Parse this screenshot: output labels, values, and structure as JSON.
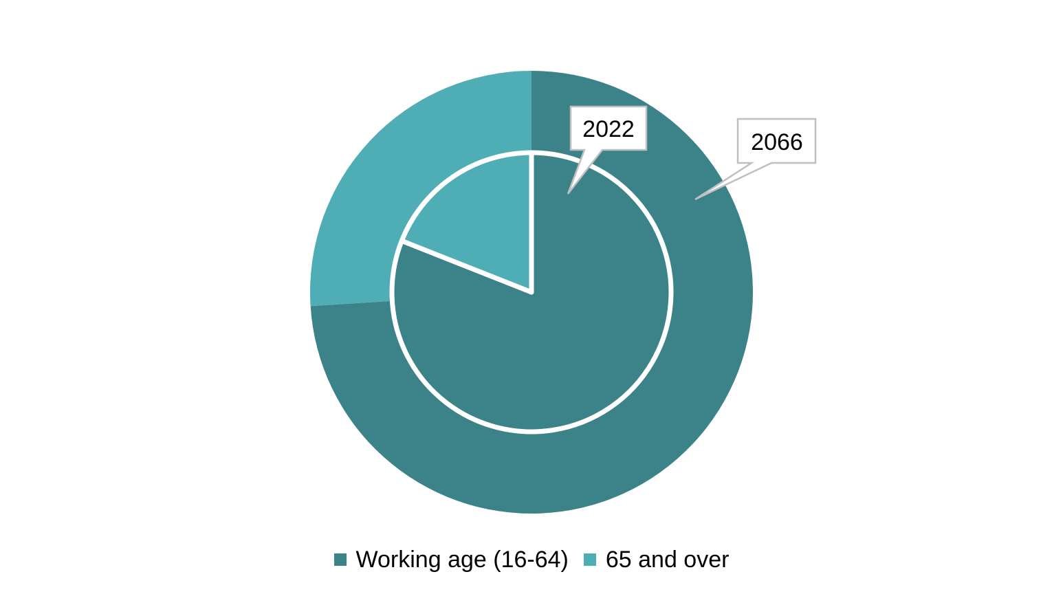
{
  "chart_data": {
    "type": "pie",
    "categories": [
      "Working age (16-64)",
      "65 and over"
    ],
    "series": [
      {
        "name": "2022",
        "values": [
          81,
          19
        ]
      },
      {
        "name": "2066",
        "values": [
          74,
          26
        ]
      }
    ],
    "title": "",
    "legend_position": "bottom",
    "colors": [
      "#3c8389",
      "#4eadb5"
    ],
    "annotations": [
      "2022",
      "2066"
    ]
  }
}
